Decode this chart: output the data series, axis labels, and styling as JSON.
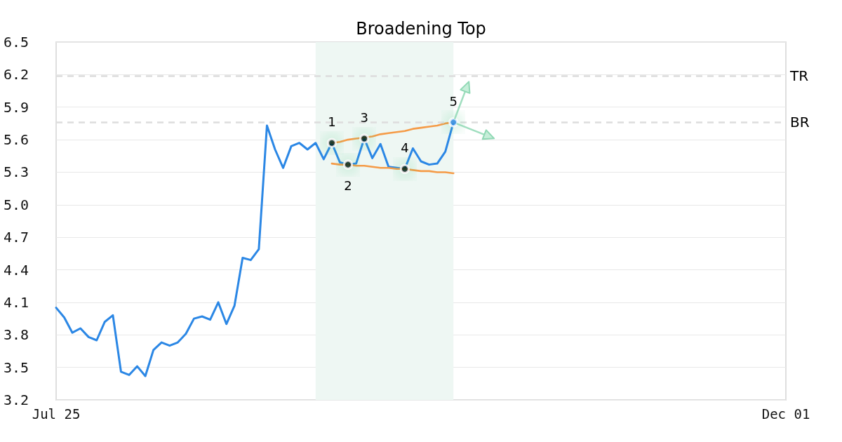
{
  "chart_data": {
    "type": "line",
    "title": "Broadening Top",
    "categories": [
      "Jul 25",
      null,
      null,
      null,
      null,
      null,
      null,
      null,
      null,
      null,
      null,
      null,
      null,
      null,
      null,
      null,
      null,
      null,
      null,
      null,
      null,
      null,
      null,
      null,
      null,
      null,
      null,
      null,
      null,
      null,
      null,
      null,
      null,
      null,
      null,
      null,
      null,
      null,
      null,
      null,
      null,
      null,
      null,
      null,
      null,
      null,
      null,
      null,
      null,
      null,
      null,
      null,
      null,
      null,
      null,
      null,
      null,
      null,
      null,
      null,
      null,
      null,
      null,
      null,
      null,
      null,
      null,
      null,
      null,
      null,
      null,
      null,
      null,
      null,
      null,
      null,
      null,
      null,
      null,
      null,
      null,
      null,
      null,
      null,
      null,
      null,
      null,
      null,
      null,
      null,
      "Dec 01"
    ],
    "ylim": [
      3.2,
      6.5
    ],
    "yticks": [
      3.2,
      3.5,
      3.8,
      4.1,
      4.4,
      4.7,
      {
        "value": 5,
        "label": "5.0"
      },
      5.3,
      5.6,
      5.9,
      6.2,
      6.5
    ],
    "grid": "y",
    "marker": "none",
    "series": [
      {
        "color": "#2b87e5",
        "values": [
          4.05,
          3.96,
          3.82,
          3.86,
          3.78,
          3.75,
          3.92,
          3.98,
          3.46,
          3.43,
          3.51,
          3.42,
          3.66,
          3.73,
          3.7,
          3.73,
          3.81,
          3.95,
          3.97,
          3.94,
          4.1,
          3.9,
          4.07,
          4.51,
          4.49,
          4.59,
          5.73,
          5.51,
          5.34,
          5.54,
          5.57,
          5.51,
          5.57,
          5.42,
          5.57,
          5.39,
          5.37,
          5.38,
          5.61,
          5.43,
          5.56,
          5.35,
          5.34,
          5.33,
          5.52,
          5.4,
          5.37,
          5.38,
          5.49,
          5.76,
          null,
          null,
          null,
          null,
          null,
          null,
          null,
          null,
          null,
          null,
          null,
          null,
          null,
          null,
          null,
          null,
          null,
          null,
          null,
          null,
          null,
          null,
          null,
          null,
          null,
          null,
          null,
          null,
          null,
          null,
          null,
          null,
          null,
          null,
          null,
          null,
          null,
          null,
          null,
          null,
          null
        ]
      },
      {
        "color": "#f59b47",
        "values": [
          null,
          null,
          null,
          null,
          null,
          null,
          null,
          null,
          null,
          null,
          null,
          null,
          null,
          null,
          null,
          null,
          null,
          null,
          null,
          null,
          null,
          null,
          null,
          null,
          null,
          null,
          null,
          null,
          null,
          null,
          null,
          null,
          null,
          null,
          5.57,
          5.58,
          5.6,
          5.61,
          5.62,
          5.63,
          5.65,
          5.66,
          5.67,
          5.68,
          5.7,
          5.71,
          5.72,
          5.73,
          5.75,
          5.76,
          null,
          null,
          null,
          null,
          null,
          null,
          null,
          null,
          null,
          null,
          null,
          null,
          null,
          null,
          null,
          null,
          null,
          null,
          null,
          null,
          null,
          null,
          null,
          null,
          null,
          null,
          null,
          null,
          null,
          null,
          null,
          null,
          null,
          null,
          null,
          null,
          null,
          null,
          null,
          null,
          null
        ]
      },
      {
        "color": "#f59b47",
        "values": [
          null,
          null,
          null,
          null,
          null,
          null,
          null,
          null,
          null,
          null,
          null,
          null,
          null,
          null,
          null,
          null,
          null,
          null,
          null,
          null,
          null,
          null,
          null,
          null,
          null,
          null,
          null,
          null,
          null,
          null,
          null,
          null,
          null,
          null,
          5.38,
          5.37,
          5.37,
          5.36,
          5.36,
          5.35,
          5.34,
          5.34,
          5.33,
          5.33,
          5.32,
          5.31,
          5.31,
          5.3,
          5.3,
          5.29,
          null,
          null,
          null,
          null,
          null,
          null,
          null,
          null,
          null,
          null,
          null,
          null,
          null,
          null,
          null,
          null,
          null,
          null,
          null,
          null,
          null,
          null,
          null,
          null,
          null,
          null,
          null,
          null,
          null,
          null,
          null,
          null,
          null,
          null,
          null,
          null,
          null,
          null,
          null,
          null,
          null
        ]
      },
      {
        "type": "scatter",
        "marker": "circle",
        "values": [
          null,
          null,
          null,
          null,
          null,
          null,
          null,
          null,
          null,
          null,
          null,
          null,
          null,
          null,
          null,
          null,
          null,
          null,
          null,
          null,
          null,
          null,
          null,
          null,
          null,
          null,
          null,
          null,
          null,
          null,
          null,
          null,
          null,
          null,
          5.57,
          null,
          5.37,
          null,
          5.61,
          null,
          null,
          null,
          null,
          5.33,
          null,
          null,
          null,
          null,
          null,
          5.76,
          null,
          null,
          null,
          null,
          null,
          null,
          null,
          null,
          null,
          null,
          null,
          null,
          null,
          null,
          null,
          null,
          null,
          null,
          null,
          null,
          null,
          null,
          null,
          null,
          null,
          null,
          null,
          null,
          null,
          null,
          null,
          null,
          null,
          null,
          null,
          null,
          null,
          null,
          null,
          null,
          null
        ],
        "colors": [
          null,
          null,
          null,
          null,
          null,
          null,
          null,
          null,
          null,
          null,
          null,
          null,
          null,
          null,
          null,
          null,
          null,
          null,
          null,
          null,
          null,
          null,
          null,
          null,
          null,
          null,
          null,
          null,
          null,
          null,
          null,
          null,
          null,
          null,
          "#000000",
          null,
          "#000000",
          null,
          "#000000",
          null,
          null,
          null,
          null,
          "#000000",
          null,
          null,
          null,
          null,
          null,
          "#2b87e5",
          null,
          null,
          null,
          null,
          null,
          null,
          null,
          null,
          null,
          null,
          null,
          null,
          null,
          null,
          null,
          null,
          null,
          null,
          null,
          null,
          null,
          null,
          null,
          null,
          null,
          null,
          null,
          null,
          null,
          null,
          null,
          null,
          null,
          null,
          null,
          null,
          null,
          null,
          null,
          null,
          null
        ]
      }
    ],
    "ref_lines": [
      {
        "axis": "y",
        "value": 6.19,
        "label": "TR",
        "color": "#dddddd",
        "line_style": "dashed"
      },
      {
        "axis": "y",
        "value": 5.76,
        "label": "BR",
        "color": "#dddddd",
        "line_style": "dashed"
      }
    ],
    "annotations": [
      {
        "text": "1",
        "y": 5.57
      },
      {
        "text": "2",
        "y": 5.37
      },
      {
        "text": "3",
        "y": 5.61
      },
      {
        "text": "4",
        "y": 5.33
      },
      {
        "text": "5",
        "y": 5.76
      }
    ]
  }
}
